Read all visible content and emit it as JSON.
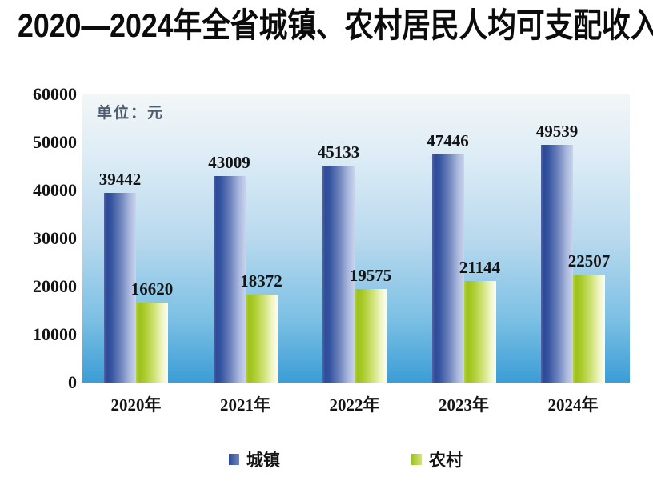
{
  "title": "2020—2024年全省城镇、农村居民人均可支配收入",
  "unit_label": "单位：元",
  "chart_data": {
    "type": "bar",
    "title": "2020—2024年全省城镇、农村居民人均可支配收入",
    "unit": "单位：元",
    "categories": [
      "2020年",
      "2021年",
      "2022年",
      "2023年",
      "2024年"
    ],
    "series": [
      {
        "name": "城镇",
        "values": [
          39442,
          43009,
          45133,
          47446,
          49539
        ]
      },
      {
        "name": "农村",
        "values": [
          16620,
          18372,
          19575,
          21144,
          22507
        ]
      }
    ],
    "y_ticks": [
      60000,
      50000,
      40000,
      30000,
      20000,
      10000,
      0
    ],
    "ylim": [
      0,
      60000
    ],
    "grid": false,
    "legend_position": "bottom",
    "data_labels": true
  },
  "colors": {
    "title_text": "#0c0c0c",
    "axis_text": "#141414",
    "unit_text": "#4d5d6d",
    "plot_bg_top": "#f3f6f7",
    "plot_bg_upper": "#dcecf6",
    "plot_bg_mid": "#b9d9ee",
    "plot_bg_lower": "#7cc0e4",
    "plot_bg_bottom": "#3b9dd6",
    "urban_dark": "#2c4a99",
    "urban_mid": "#7287bf",
    "urban_light": "#c9d3ec",
    "rural_dark": "#9dc11d",
    "rural_mid": "#d3e47e",
    "rural_light": "#fcfdf2"
  }
}
